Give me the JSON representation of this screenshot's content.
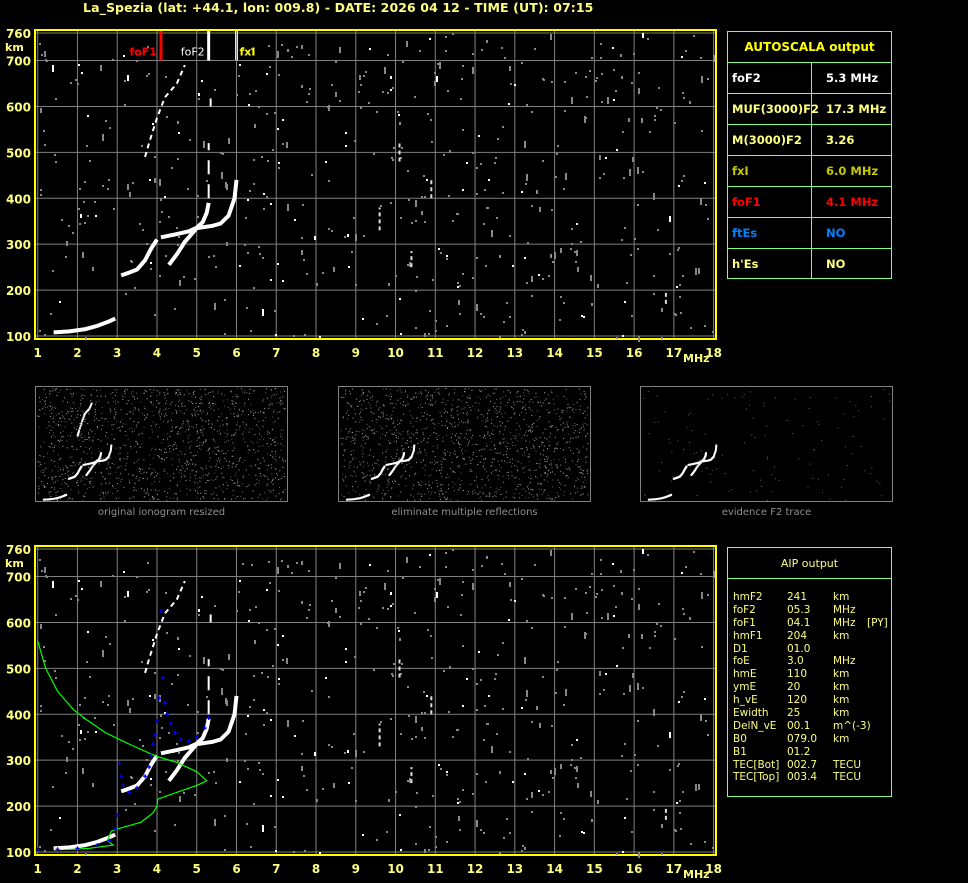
{
  "header": {
    "title": "La_Spezia (lat: +44.1, lon: 009.8) - DATE: 2026 04 12 - TIME (UT): 07:15"
  },
  "colors": {
    "frame": "#ffff00",
    "axis_text": "#ffff80",
    "grid": "#808080",
    "box_border": "#80ff80",
    "foF1": "#ff0000",
    "foF2": "#ffffff",
    "fxI": "#ffff00",
    "ftEs": "#0080ff",
    "profile": "#00ff00",
    "fitted_trace": "#0000ff"
  },
  "axes": {
    "y_unit": "km",
    "x_unit": "MHz",
    "y_ticks": [
      "760",
      "700",
      "600",
      "500",
      "400",
      "300",
      "200",
      "100"
    ],
    "x_ticks": [
      "1",
      "2",
      "3",
      "4",
      "5",
      "6",
      "7",
      "8",
      "9",
      "10",
      "11",
      "12",
      "13",
      "14",
      "15",
      "16",
      "17",
      "18"
    ]
  },
  "autoscala": {
    "title": "AUTOSCALA output",
    "rows": [
      {
        "key": "foF2",
        "value": "5.3 MHz",
        "color": "#ffffff"
      },
      {
        "key": "MUF(3000)F2",
        "value": "17.3 MHz",
        "color": "#ffff80"
      },
      {
        "key": "M(3000)F2",
        "value": "3.26",
        "color": "#ffff80"
      },
      {
        "key": "fxI",
        "value": "6.0 MHz",
        "color": "#c8c800"
      },
      {
        "key": "foF1",
        "value": "4.1 MHz",
        "color": "#ff0000"
      },
      {
        "key": "ftEs",
        "value": "NO",
        "color": "#0080ff"
      },
      {
        "key": "h'Es",
        "value": "NO",
        "color": "#ffff80"
      }
    ]
  },
  "aip": {
    "title": "AIP output",
    "rows": [
      [
        "hmF2",
        "241",
        "km",
        ""
      ],
      [
        "foF2",
        "05.3",
        "MHz",
        ""
      ],
      [
        "foF1",
        "04.1",
        "MHz",
        "[PY]"
      ],
      [
        "hmF1",
        "204",
        "km",
        ""
      ],
      [
        "D1",
        "01.0",
        "",
        ""
      ],
      [
        "foE",
        "3.0",
        "MHz",
        ""
      ],
      [
        "hmE",
        "110",
        "km",
        ""
      ],
      [
        "ymE",
        "20",
        "km",
        ""
      ],
      [
        "h_vE",
        "120",
        "km",
        ""
      ],
      [
        "Ewidth",
        "25",
        "km",
        ""
      ],
      [
        "DelN_vE",
        "00.1",
        "m^(-3)",
        ""
      ],
      [
        "B0",
        "079.0",
        "km",
        ""
      ],
      [
        "B1",
        "01.2",
        "",
        ""
      ],
      [
        "TEC[Bot]",
        "002.7",
        "TECU",
        ""
      ],
      [
        "TEC[Top]",
        "003.4",
        "TECU",
        ""
      ]
    ]
  },
  "thumbnails": [
    {
      "caption": "original ionogram resized"
    },
    {
      "caption": "eliminate multiple reflections"
    },
    {
      "caption": "evidence F2 trace"
    }
  ],
  "chart_data": [
    {
      "type": "scatter",
      "title": "",
      "xlabel": "MHz",
      "ylabel": "km",
      "xlim": [
        1,
        18
      ],
      "ylim": [
        100,
        760
      ],
      "grid": true,
      "markers": [
        {
          "name": "foF1",
          "x": 4.1,
          "color": "#ff0000"
        },
        {
          "name": "foF2",
          "x": 5.3,
          "color": "#ffffff"
        },
        {
          "name": "fxI",
          "x": 6.0,
          "color": "#ffff00"
        }
      ],
      "traces": [
        {
          "x": [
            1.4,
            1.8,
            2.2,
            2.5,
            2.8,
            2.95
          ],
          "y": [
            108,
            110,
            115,
            122,
            132,
            138
          ]
        },
        {
          "x": [
            3.1,
            3.3,
            3.5,
            3.7,
            3.85,
            4.0
          ],
          "y": [
            232,
            238,
            245,
            265,
            290,
            310
          ]
        },
        {
          "x": [
            4.1,
            4.5,
            4.8,
            5.0,
            5.15,
            5.25,
            5.3
          ],
          "y": [
            315,
            322,
            328,
            336,
            348,
            368,
            390
          ]
        },
        {
          "x": [
            4.3,
            4.5,
            4.7,
            5.0,
            5.4,
            5.6,
            5.8,
            5.95,
            6.0
          ],
          "y": [
            255,
            278,
            305,
            335,
            340,
            345,
            362,
            400,
            440
          ]
        },
        {
          "x": [
            3.7,
            3.8,
            4.0,
            4.2,
            4.5,
            4.7
          ],
          "y": [
            490,
            520,
            575,
            620,
            650,
            690
          ]
        }
      ]
    },
    {
      "type": "line",
      "title": "",
      "xlabel": "MHz",
      "ylabel": "km",
      "xlim": [
        1,
        18
      ],
      "ylim": [
        100,
        760
      ],
      "grid": true,
      "profile": {
        "x": [
          1.7,
          2.3,
          2.9,
          2.75,
          2.85,
          3.0,
          3.6,
          3.9,
          4.0,
          4.02,
          4.5,
          5.0,
          5.25,
          5.0,
          4.5,
          4.0,
          3.3,
          2.7,
          2.2,
          1.9,
          1.5,
          1.2,
          1.0
        ],
        "y": [
          105,
          108,
          115,
          125,
          145,
          150,
          165,
          185,
          200,
          215,
          230,
          245,
          255,
          275,
          295,
          308,
          335,
          360,
          390,
          410,
          450,
          500,
          560
        ]
      },
      "fitted_trace": {
        "x": [
          1.0,
          1.5,
          2.0,
          2.5,
          2.8,
          2.95,
          3.0,
          3.05,
          3.1,
          3.15,
          3.3,
          3.5,
          3.7,
          3.8,
          3.85,
          3.9,
          3.95,
          4.0,
          4.05,
          4.1,
          4.15,
          4.2,
          4.25,
          4.35,
          4.45,
          4.6,
          4.8,
          5.0,
          5.2,
          5.3
        ],
        "y": [
          105,
          106,
          108,
          115,
          125,
          150,
          180,
          293,
          265,
          245,
          230,
          240,
          265,
          285,
          310,
          335,
          355,
          385,
          435,
          625,
          480,
          425,
          400,
          380,
          360,
          345,
          342,
          350,
          370,
          392
        ]
      }
    }
  ]
}
